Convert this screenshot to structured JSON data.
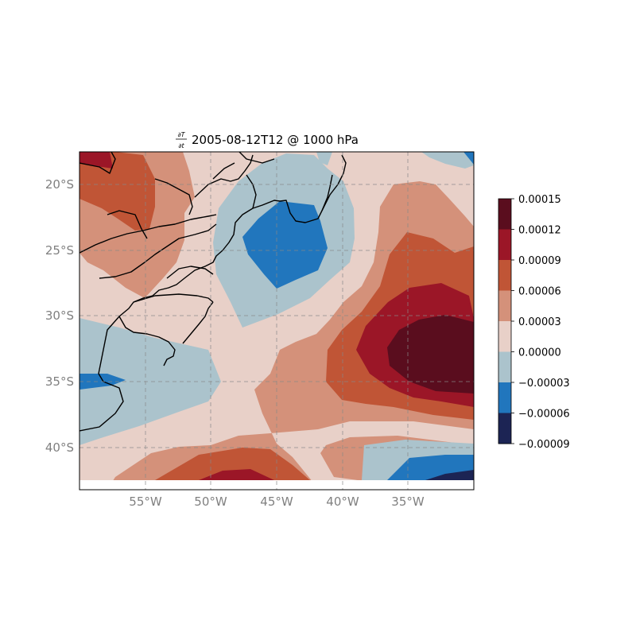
{
  "title": {
    "derivative_numerator": "∂T",
    "derivative_denominator": "∂t",
    "text": "2005-08-12T12 @ 1000 hPa"
  },
  "map": {
    "projection": "PlateCarree",
    "lon_range": [
      -60,
      -30
    ],
    "lat_range": [
      -42.5,
      -17.5
    ],
    "gridlines": "dashed gray",
    "lon_ticks": [
      {
        "value": -55,
        "label": "55°W"
      },
      {
        "value": -50,
        "label": "50°W"
      },
      {
        "value": -45,
        "label": "45°W"
      },
      {
        "value": -40,
        "label": "40°W"
      },
      {
        "value": -35,
        "label": "35°W"
      }
    ],
    "lat_ticks": [
      {
        "value": -20,
        "label": "20°S"
      },
      {
        "value": -25,
        "label": "25°S"
      },
      {
        "value": -30,
        "label": "30°S"
      },
      {
        "value": -35,
        "label": "35°S"
      },
      {
        "value": -40,
        "label": "40°S"
      }
    ]
  },
  "colorbar": {
    "levels": [
      "0.00015",
      "0.00012",
      "0.00009",
      "0.00006",
      "0.00003",
      "0.00000",
      "−0.00003",
      "−0.00006",
      "−0.00009"
    ],
    "colors_top_to_bottom": [
      "#5a0d1e",
      "#9b1627",
      "#c05536",
      "#d4917a",
      "#e8d0c8",
      "#abc3cc",
      "#2176bd",
      "#1c2454"
    ]
  },
  "field": {
    "variable": "temperature tendency",
    "palette": {
      "n3": "#1c2454",
      "n2": "#2176bd",
      "n1": "#abc3cc",
      "p1": "#e8d0c8",
      "p2": "#d4917a",
      "p3": "#c05536",
      "p4": "#9b1627",
      "p5": "#5a0d1e"
    }
  }
}
